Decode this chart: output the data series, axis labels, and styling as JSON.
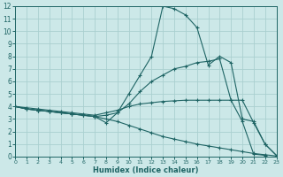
{
  "xlabel": "Humidex (Indice chaleur)",
  "xlim": [
    0,
    23
  ],
  "ylim": [
    0,
    12
  ],
  "xticks": [
    0,
    1,
    2,
    3,
    4,
    5,
    6,
    7,
    8,
    9,
    10,
    11,
    12,
    13,
    14,
    15,
    16,
    17,
    18,
    19,
    20,
    21,
    22,
    23
  ],
  "yticks": [
    0,
    1,
    2,
    3,
    4,
    5,
    6,
    7,
    8,
    9,
    10,
    11,
    12
  ],
  "bg_color": "#cce8e8",
  "grid_color": "#aad0d0",
  "line_color": "#1e6464",
  "lines": [
    {
      "x": [
        0,
        1,
        2,
        3,
        4,
        5,
        6,
        7,
        8,
        9,
        10,
        11,
        12,
        13,
        14,
        15,
        16,
        17,
        18,
        19,
        20,
        21,
        22,
        23
      ],
      "y": [
        4,
        3.8,
        3.7,
        3.6,
        3.5,
        3.4,
        3.3,
        3.2,
        2.7,
        3.5,
        5.0,
        6.5,
        8.0,
        12.0,
        11.8,
        11.3,
        10.3,
        7.3,
        8.0,
        7.5,
        3.0,
        2.8,
        1.0,
        0.1
      ]
    },
    {
      "x": [
        0,
        1,
        2,
        3,
        4,
        5,
        6,
        7,
        8,
        9,
        10,
        11,
        12,
        13,
        14,
        15,
        16,
        17,
        18,
        19,
        20,
        21,
        22
      ],
      "y": [
        4,
        3.8,
        3.7,
        3.6,
        3.5,
        3.4,
        3.3,
        3.2,
        3.3,
        3.5,
        4.2,
        5.2,
        6.0,
        6.5,
        7.0,
        7.2,
        7.5,
        7.6,
        7.8,
        4.5,
        2.8,
        0.2,
        0.1
      ]
    },
    {
      "x": [
        0,
        1,
        2,
        3,
        4,
        5,
        6,
        7,
        8,
        9,
        10,
        11,
        12,
        13,
        14,
        15,
        16,
        17,
        18,
        19,
        20,
        21,
        22,
        23
      ],
      "y": [
        4,
        3.8,
        3.7,
        3.6,
        3.5,
        3.4,
        3.3,
        3.2,
        3.0,
        2.8,
        2.5,
        2.2,
        1.9,
        1.6,
        1.4,
        1.2,
        1.0,
        0.85,
        0.7,
        0.55,
        0.4,
        0.25,
        0.15,
        0.05
      ]
    },
    {
      "x": [
        0,
        1,
        2,
        3,
        4,
        5,
        6,
        7,
        8,
        9,
        10,
        11,
        12,
        13,
        14,
        15,
        16,
        17,
        18,
        19,
        20,
        21,
        22,
        23
      ],
      "y": [
        4,
        3.9,
        3.8,
        3.7,
        3.6,
        3.5,
        3.4,
        3.3,
        3.5,
        3.7,
        4.0,
        4.2,
        4.3,
        4.4,
        4.45,
        4.5,
        4.5,
        4.5,
        4.5,
        4.5,
        4.5,
        2.7,
        1.0,
        0.1
      ]
    }
  ]
}
